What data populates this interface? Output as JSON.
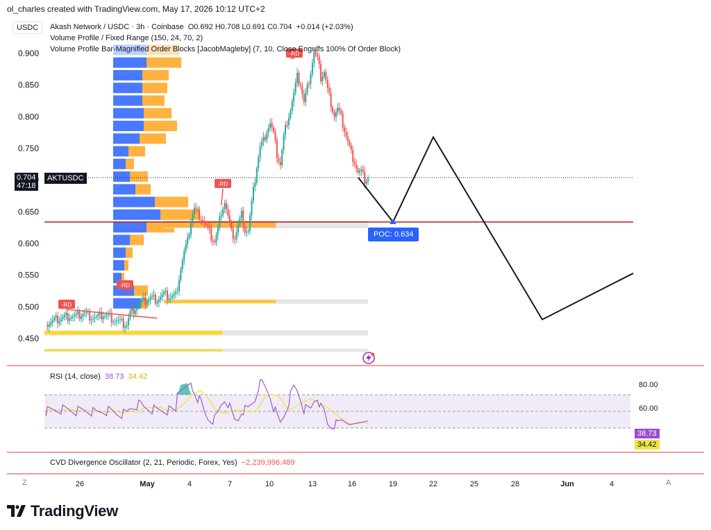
{
  "header": {
    "published": "ol_charles created with TradingView.com, May 17, 2026 10:12 UTC+2",
    "currency_button": "USDC",
    "title": "Akash Network / USDC · 3h · Coinbase",
    "ohlc": "O0.692  H0.708  L0.691  C0.704",
    "change": "+0.014 (+2.03%)",
    "indicator1": "Volume Profile / Fixed Range (150, 24, 70, 2)",
    "indicator2": "Volume Profile Bar-Magnified Order Blocks [JacobMagleby] (7, 10, Close Engulfs 100% Of Order Block)"
  },
  "price_tag": {
    "price": "0.704",
    "countdown": "47:18",
    "symbol": "AKTUSDC"
  },
  "poc_label": "POC: 0.634",
  "rd_label": "-RD",
  "rsi": {
    "title": "RSI (14, close)",
    "value": "38.73",
    "ma_value": "34.42",
    "levels": [
      "80.00",
      "60.00"
    ]
  },
  "cvd": {
    "title": "CVD Divergence Oscillator (2, 21, Periodic, Forex, Yes)",
    "value": "−2,239,996.489"
  },
  "timescale": {
    "left_btn": "Z",
    "right_btn": "A"
  },
  "brand": "TradingView",
  "colors": {
    "up": "#26a69a",
    "down": "#ef5350",
    "text": "#131722",
    "poc_line": "#b71c1c",
    "poc_box": "#2962ff",
    "rsi": "#9c4dcc",
    "rsi_ma": "#f0e442",
    "vp_blue": "#2962ff",
    "vp_orange": "#ff9800",
    "ob_yellow": "#ffd600"
  },
  "chart_data": {
    "type": "candlestick",
    "symbol": "AKTUSDC",
    "timeframe": "3h",
    "y_ticks": [
      0.9,
      0.85,
      0.8,
      0.75,
      0.7,
      0.65,
      0.6,
      0.55,
      0.5,
      0.45
    ],
    "ylim": [
      0.42,
      0.94
    ],
    "x_tick_labels": [
      "26",
      "May",
      "4",
      "7",
      "10",
      "13",
      "16",
      "19",
      "22",
      "25",
      "28",
      "Jun",
      "4"
    ],
    "close_path": [
      [
        0,
        0.472
      ],
      [
        5,
        0.478
      ],
      [
        10,
        0.483
      ],
      [
        14,
        0.486
      ],
      [
        18,
        0.484
      ],
      [
        22,
        0.49
      ],
      [
        26,
        0.486
      ],
      [
        30,
        0.482
      ],
      [
        34,
        0.488
      ],
      [
        38,
        0.484
      ],
      [
        42,
        0.478
      ],
      [
        46,
        0.473
      ],
      [
        48,
        0.472
      ],
      [
        50,
        0.49
      ],
      [
        54,
        0.502
      ],
      [
        58,
        0.508
      ],
      [
        62,
        0.514
      ],
      [
        66,
        0.512
      ],
      [
        70,
        0.519
      ],
      [
        74,
        0.516
      ],
      [
        77,
        0.518
      ],
      [
        78,
        0.532
      ],
      [
        80,
        0.562
      ],
      [
        82,
        0.586
      ],
      [
        84,
        0.602
      ],
      [
        86,
        0.638
      ],
      [
        88,
        0.655
      ],
      [
        90,
        0.648
      ],
      [
        92,
        0.642
      ],
      [
        94,
        0.632
      ],
      [
        96,
        0.622
      ],
      [
        98,
        0.611
      ],
      [
        100,
        0.603
      ],
      [
        102,
        0.621
      ],
      [
        104,
        0.652
      ],
      [
        106,
        0.666
      ],
      [
        108,
        0.642
      ],
      [
        110,
        0.616
      ],
      [
        112,
        0.61
      ],
      [
        114,
        0.628
      ],
      [
        116,
        0.646
      ],
      [
        118,
        0.622
      ],
      [
        120,
        0.62
      ],
      [
        121,
        0.642
      ],
      [
        123,
        0.682
      ],
      [
        125,
        0.722
      ],
      [
        127,
        0.752
      ],
      [
        129,
        0.762
      ],
      [
        131,
        0.78
      ],
      [
        133,
        0.79
      ],
      [
        135,
        0.772
      ],
      [
        137,
        0.74
      ],
      [
        139,
        0.725
      ],
      [
        141,
        0.768
      ],
      [
        143,
        0.794
      ],
      [
        145,
        0.812
      ],
      [
        147,
        0.836
      ],
      [
        149,
        0.862
      ],
      [
        151,
        0.852
      ],
      [
        153,
        0.822
      ],
      [
        155,
        0.846
      ],
      [
        157,
        0.872
      ],
      [
        159,
        0.902
      ],
      [
        161,
        0.89
      ],
      [
        163,
        0.862
      ],
      [
        165,
        0.872
      ],
      [
        167,
        0.842
      ],
      [
        169,
        0.822
      ],
      [
        171,
        0.802
      ],
      [
        173,
        0.812
      ],
      [
        175,
        0.798
      ],
      [
        177,
        0.78
      ],
      [
        179,
        0.76
      ],
      [
        181,
        0.742
      ],
      [
        183,
        0.73
      ],
      [
        185,
        0.712
      ],
      [
        187,
        0.712
      ],
      [
        189,
        0.7
      ],
      [
        191,
        0.704
      ]
    ],
    "projection_path": [
      [
        0.704,
        "start"
      ],
      [
        0.634,
        "poc"
      ],
      [
        0.768,
        "22 May"
      ],
      [
        0.48,
        "late May"
      ],
      [
        0.553,
        "early Jun"
      ]
    ],
    "poc": 0.634,
    "rsi_levels": [
      80,
      60
    ],
    "rsi_last": 38.73,
    "rsi_ma_last": 34.42
  }
}
